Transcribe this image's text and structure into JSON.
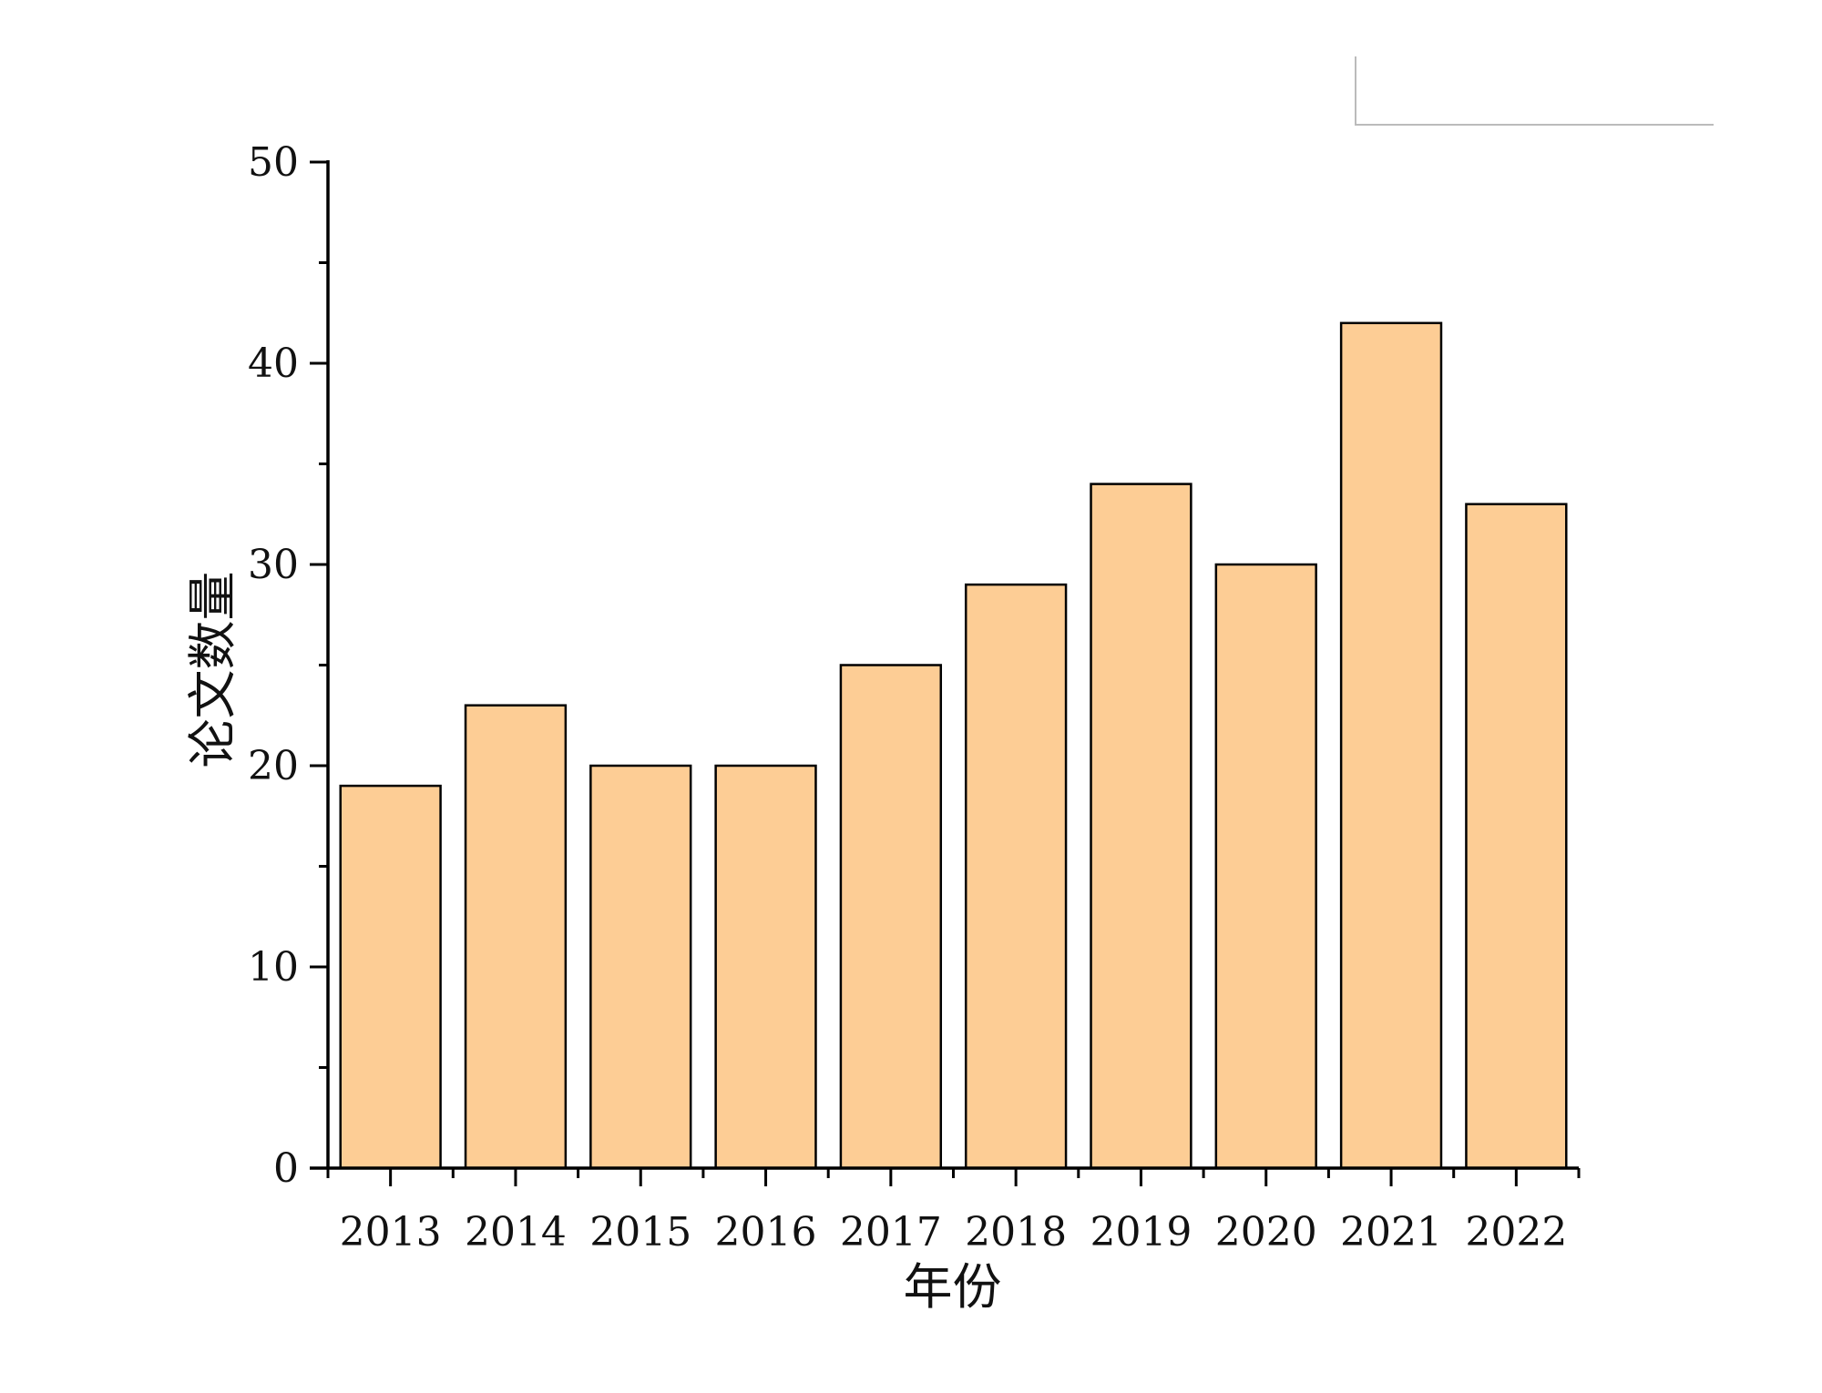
{
  "chart_data": {
    "type": "bar",
    "categories": [
      "2013",
      "2014",
      "2015",
      "2016",
      "2017",
      "2018",
      "2019",
      "2020",
      "2021",
      "2022"
    ],
    "values": [
      19,
      23,
      20,
      20,
      25,
      29,
      34,
      30,
      42,
      33
    ],
    "xlabel": "年份",
    "ylabel": "论文数量",
    "ylim": [
      0,
      50
    ],
    "yticks": [
      "0",
      "10",
      "20",
      "30",
      "40",
      "50"
    ],
    "bar_color": "#FDCD95",
    "bar_edge_color": "#000000",
    "grid": false,
    "legend_placement": "top-right"
  }
}
